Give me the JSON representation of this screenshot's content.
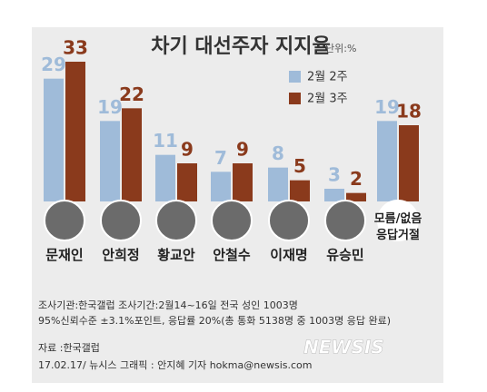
{
  "chart_data": {
    "type": "bar",
    "title": "차기 대선주자 지지율",
    "unit_note": "단위:%",
    "categories": [
      "문재인",
      "안희정",
      "황교안",
      "안철수",
      "이재명",
      "유승민",
      "모름/없음\n응답거절"
    ],
    "series": [
      {
        "name": "2월 2주",
        "color": "#9fbbd9",
        "values": [
          29,
          19,
          11,
          7,
          8,
          3,
          19
        ]
      },
      {
        "name": "2월 3주",
        "color": "#8a3a1c",
        "values": [
          33,
          22,
          9,
          9,
          5,
          2,
          18
        ]
      }
    ],
    "notes": [
      "조사기관:한국갤럽 조사기간:2월14~16일 전국 성인 1003명",
      "95%신뢰수준 ±3.1%포인트, 응답률 20%(총 통화 5138명 중 1003명 응답 완료)"
    ],
    "source": "자료 :한국갤럽",
    "credit": "17.02.17/ 뉴시스 그래픽 : 안지혜 기자 hokma@newsis.com",
    "logo": "NEWSIS"
  }
}
